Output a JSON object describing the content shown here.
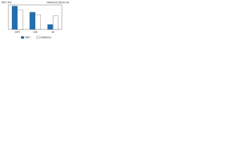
{
  "chart_data": {
    "type": "bar",
    "y_label": "SRC (%)",
    "y2_label": "Hardness (Shore A)",
    "categories": [
      "GRT",
      "CW",
      "W"
    ],
    "series": [
      {
        "name": "SRC",
        "color": "#1f6fb4",
        "values": [
          95,
          70,
          20
        ]
      },
      {
        "name": "Hardness",
        "color": "#ffffff",
        "values": [
          80,
          60,
          55
        ]
      }
    ],
    "ylim": [
      0,
      100
    ]
  }
}
